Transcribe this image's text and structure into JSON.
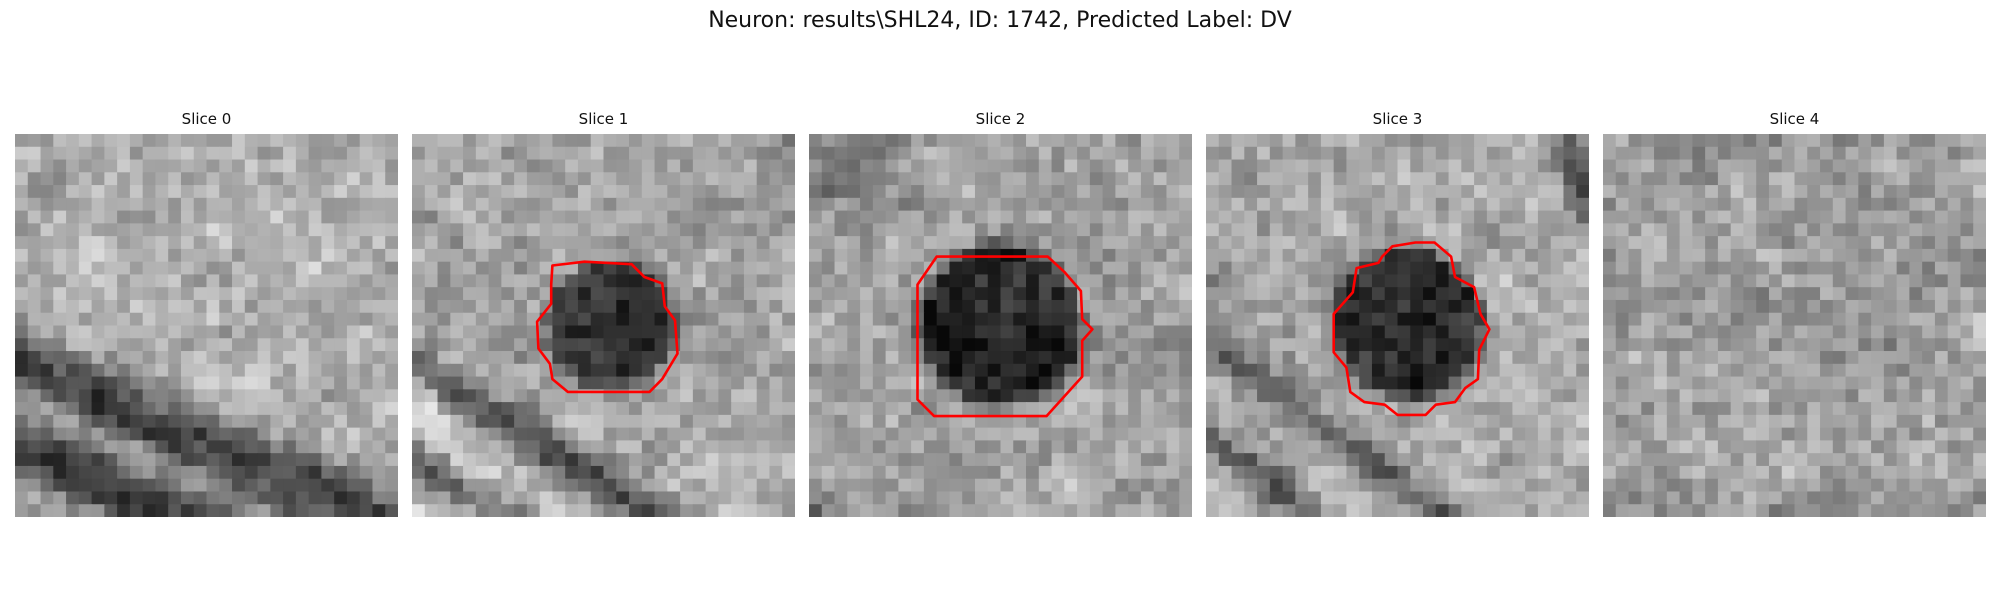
{
  "figure": {
    "title": "Neuron: results\\SHL24, ID: 1742, Predicted Label: DV"
  },
  "panels": [
    {
      "title": "Slice 0",
      "has_contour": false,
      "contour_color": "#ff0000"
    },
    {
      "title": "Slice 1",
      "has_contour": true,
      "contour_color": "#ff0000"
    },
    {
      "title": "Slice 2",
      "has_contour": true,
      "contour_color": "#ff0000"
    },
    {
      "title": "Slice 3",
      "has_contour": true,
      "contour_color": "#ff0000"
    },
    {
      "title": "Slice 4",
      "has_contour": false,
      "contour_color": "#ff0000"
    }
  ]
}
